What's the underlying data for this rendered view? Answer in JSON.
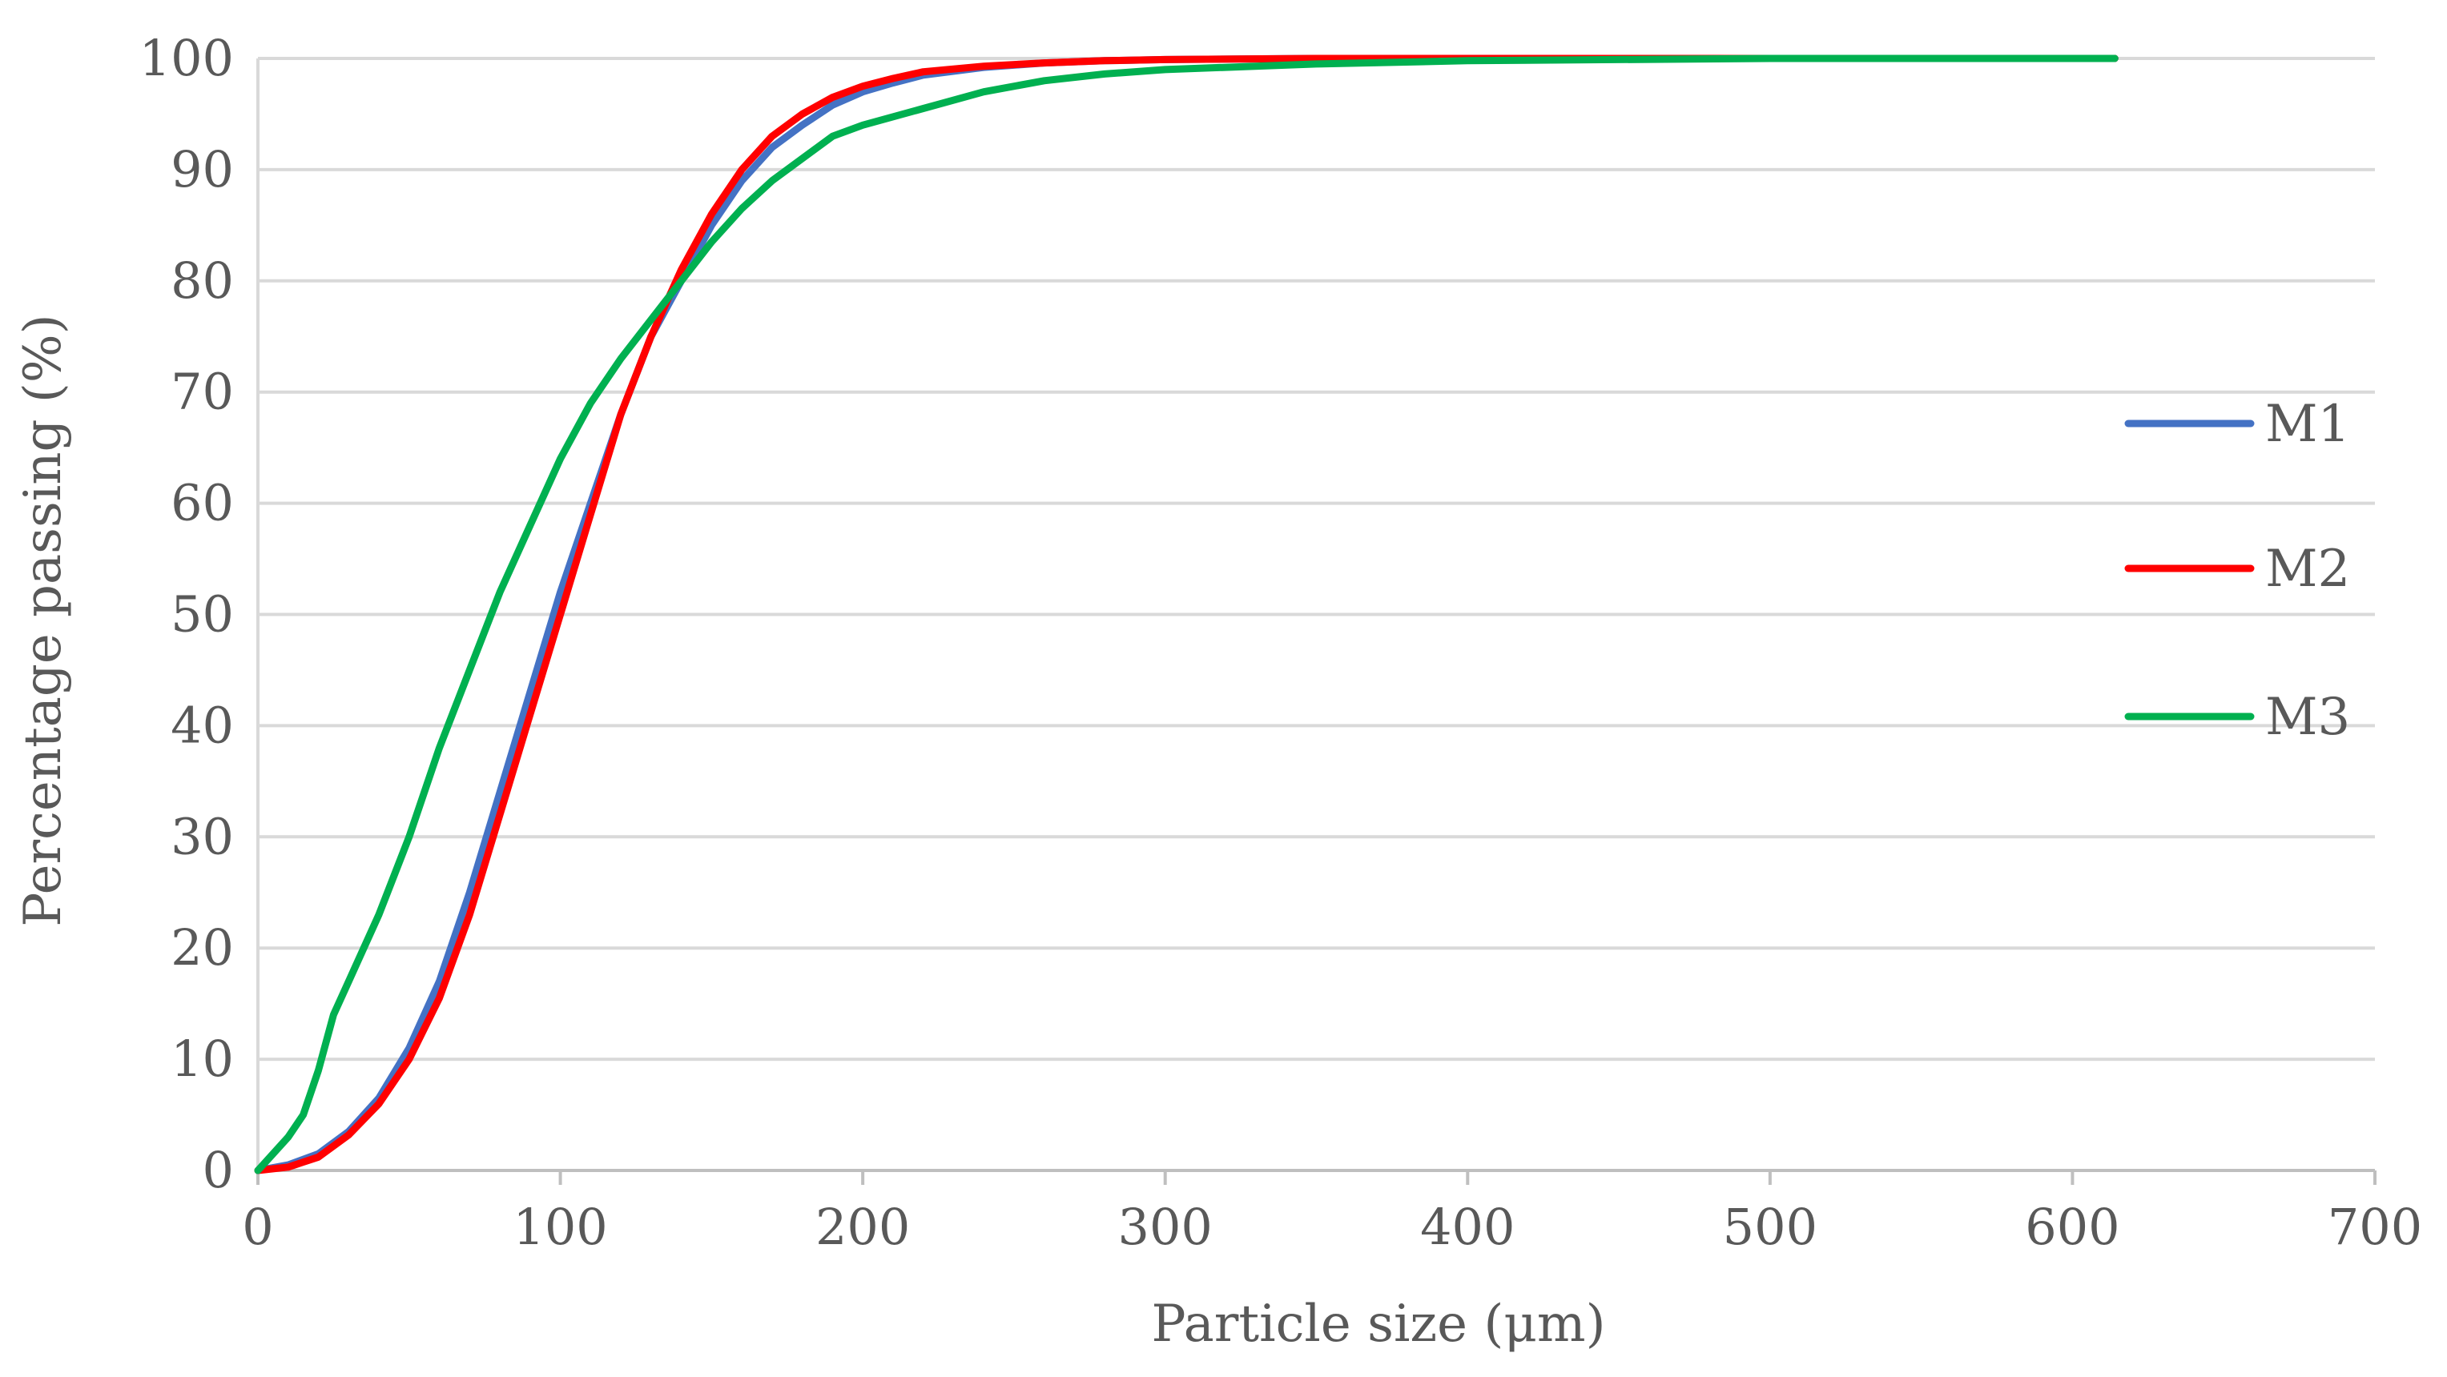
{
  "chart_data": {
    "type": "line",
    "title": "",
    "xlabel": "Particle size (μm)",
    "ylabel": "Percentage passing (%)",
    "xlim": [
      0,
      700
    ],
    "ylim": [
      0,
      100
    ],
    "xticks": [
      0,
      100,
      200,
      300,
      400,
      500,
      600,
      700
    ],
    "yticks": [
      0,
      10,
      20,
      30,
      40,
      50,
      60,
      70,
      80,
      90,
      100
    ],
    "grid": "horizontal",
    "legend_position": "right",
    "series": [
      {
        "name": "M1",
        "color": "#4472c4",
        "x": [
          0,
          10,
          20,
          30,
          40,
          50,
          60,
          70,
          80,
          90,
          100,
          110,
          120,
          130,
          140,
          150,
          160,
          170,
          180,
          190,
          200,
          210,
          220,
          240,
          260,
          280,
          300,
          350,
          400,
          500,
          614
        ],
        "y": [
          0,
          0.5,
          1.5,
          3.5,
          6.5,
          11,
          17,
          25,
          34,
          43,
          52,
          60,
          68,
          75,
          80,
          85,
          89,
          92,
          94,
          95.8,
          97,
          97.8,
          98.5,
          99.2,
          99.6,
          99.8,
          99.9,
          100,
          100,
          100,
          100
        ]
      },
      {
        "name": "M2",
        "color": "#ff0000",
        "x": [
          0,
          10,
          20,
          30,
          40,
          50,
          60,
          70,
          80,
          90,
          100,
          110,
          120,
          130,
          140,
          150,
          160,
          170,
          180,
          190,
          200,
          210,
          220,
          240,
          260,
          280,
          300,
          350,
          400,
          500,
          614
        ],
        "y": [
          0,
          0.3,
          1.2,
          3.2,
          6,
          10,
          15.5,
          23,
          32,
          41,
          50,
          59,
          68,
          75,
          81,
          86,
          90,
          93,
          95,
          96.5,
          97.5,
          98.2,
          98.8,
          99.3,
          99.6,
          99.8,
          99.9,
          100,
          100,
          100,
          100
        ]
      },
      {
        "name": "M3",
        "color": "#00b050",
        "x": [
          0,
          5,
          10,
          15,
          20,
          25,
          30,
          40,
          50,
          60,
          70,
          80,
          90,
          100,
          110,
          120,
          130,
          140,
          150,
          160,
          170,
          180,
          190,
          200,
          220,
          240,
          260,
          280,
          300,
          350,
          400,
          500,
          614
        ],
        "y": [
          0,
          1.5,
          3,
          5,
          9,
          14,
          17,
          23,
          30,
          38,
          45,
          52,
          58,
          64,
          69,
          73,
          76.5,
          80,
          83.5,
          86.5,
          89,
          91,
          93,
          94,
          95.5,
          97,
          98,
          98.6,
          99,
          99.5,
          99.8,
          100,
          100
        ]
      }
    ]
  }
}
